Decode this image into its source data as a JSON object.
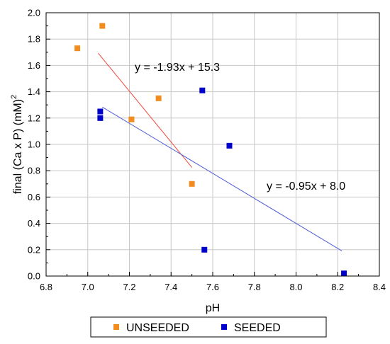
{
  "chart_data": {
    "type": "scatter",
    "xlabel": "pH",
    "ylabel": "final (Ca x P) (mM)",
    "ylabel_superscript": "2",
    "xlim": [
      6.8,
      8.4
    ],
    "ylim": [
      0.0,
      2.0
    ],
    "x_ticks": [
      6.8,
      7.0,
      7.2,
      7.4,
      7.6,
      7.8,
      8.0,
      8.2,
      8.4
    ],
    "y_ticks": [
      0.0,
      0.2,
      0.4,
      0.6,
      0.8,
      1.0,
      1.2,
      1.4,
      1.6,
      1.8,
      2.0
    ],
    "x_tick_labels": [
      "6.8",
      "7.0",
      "7.2",
      "7.4",
      "7.6",
      "7.8",
      "8.0",
      "8.2",
      "8.4"
    ],
    "y_tick_labels": [
      "0.0",
      "0.2",
      "0.4",
      "0.6",
      "0.8",
      "1.0",
      "1.2",
      "1.4",
      "1.6",
      "1.8",
      "2.0"
    ],
    "grid": true,
    "legend_position": "bottom",
    "series": [
      {
        "name": "UNSEEDED",
        "color": "#f28c1e",
        "marker": "square",
        "points": [
          [
            6.95,
            1.73
          ],
          [
            7.07,
            1.9
          ],
          [
            7.21,
            1.19
          ],
          [
            7.34,
            1.35
          ],
          [
            7.5,
            0.7
          ]
        ],
        "fit": {
          "label": "y = -1.93x + 15.3",
          "color": "#ee4a3a",
          "x_range": [
            7.05,
            7.5
          ]
        }
      },
      {
        "name": "SEEDED",
        "color": "#0000cc",
        "marker": "square",
        "points": [
          [
            7.06,
            1.25
          ],
          [
            7.06,
            1.2
          ],
          [
            7.55,
            1.41
          ],
          [
            7.56,
            0.2
          ],
          [
            7.68,
            0.99
          ],
          [
            8.23,
            0.02
          ]
        ],
        "fit": {
          "label": "y = -0.95x + 8.0",
          "color": "#4f5fd6",
          "x_range": [
            7.07,
            8.22
          ]
        }
      }
    ]
  }
}
